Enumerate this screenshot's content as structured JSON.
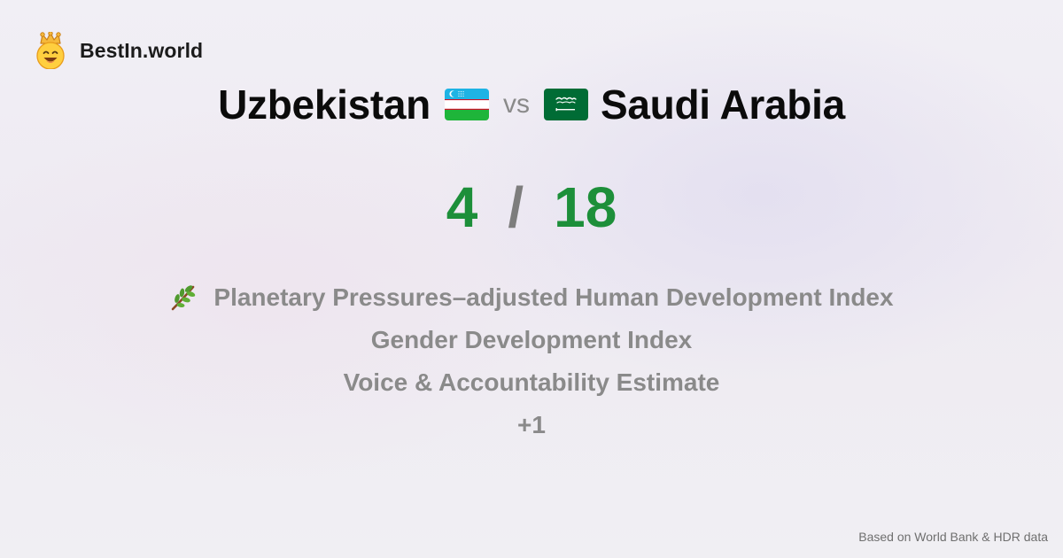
{
  "brand": {
    "name": "BestIn.world",
    "logo_icon": "crown-smiley-icon"
  },
  "comparison": {
    "country_a": "Uzbekistan",
    "country_a_flag": "uzbekistan-flag-icon",
    "vs_label": "vs",
    "country_b": "Saudi Arabia",
    "country_b_flag": "saudi-arabia-flag-icon"
  },
  "scores": {
    "a": "4",
    "separator": "/",
    "b": "18"
  },
  "metrics": {
    "items": [
      {
        "label": "Planetary Pressures–adjusted Human Development Index",
        "icon": "herb-icon"
      },
      {
        "label": "Gender Development Index"
      },
      {
        "label": "Voice & Accountability Estimate"
      }
    ],
    "more": "+1"
  },
  "footer": {
    "note": "Based on World Bank & HDR data"
  },
  "colors": {
    "score_green": "#1d8f3a",
    "muted_gray": "#8a8a8a",
    "uz_blue": "#1eb3e4",
    "uz_green": "#1eb53a",
    "uz_red": "#ce1126",
    "sa_green": "#006c35"
  }
}
